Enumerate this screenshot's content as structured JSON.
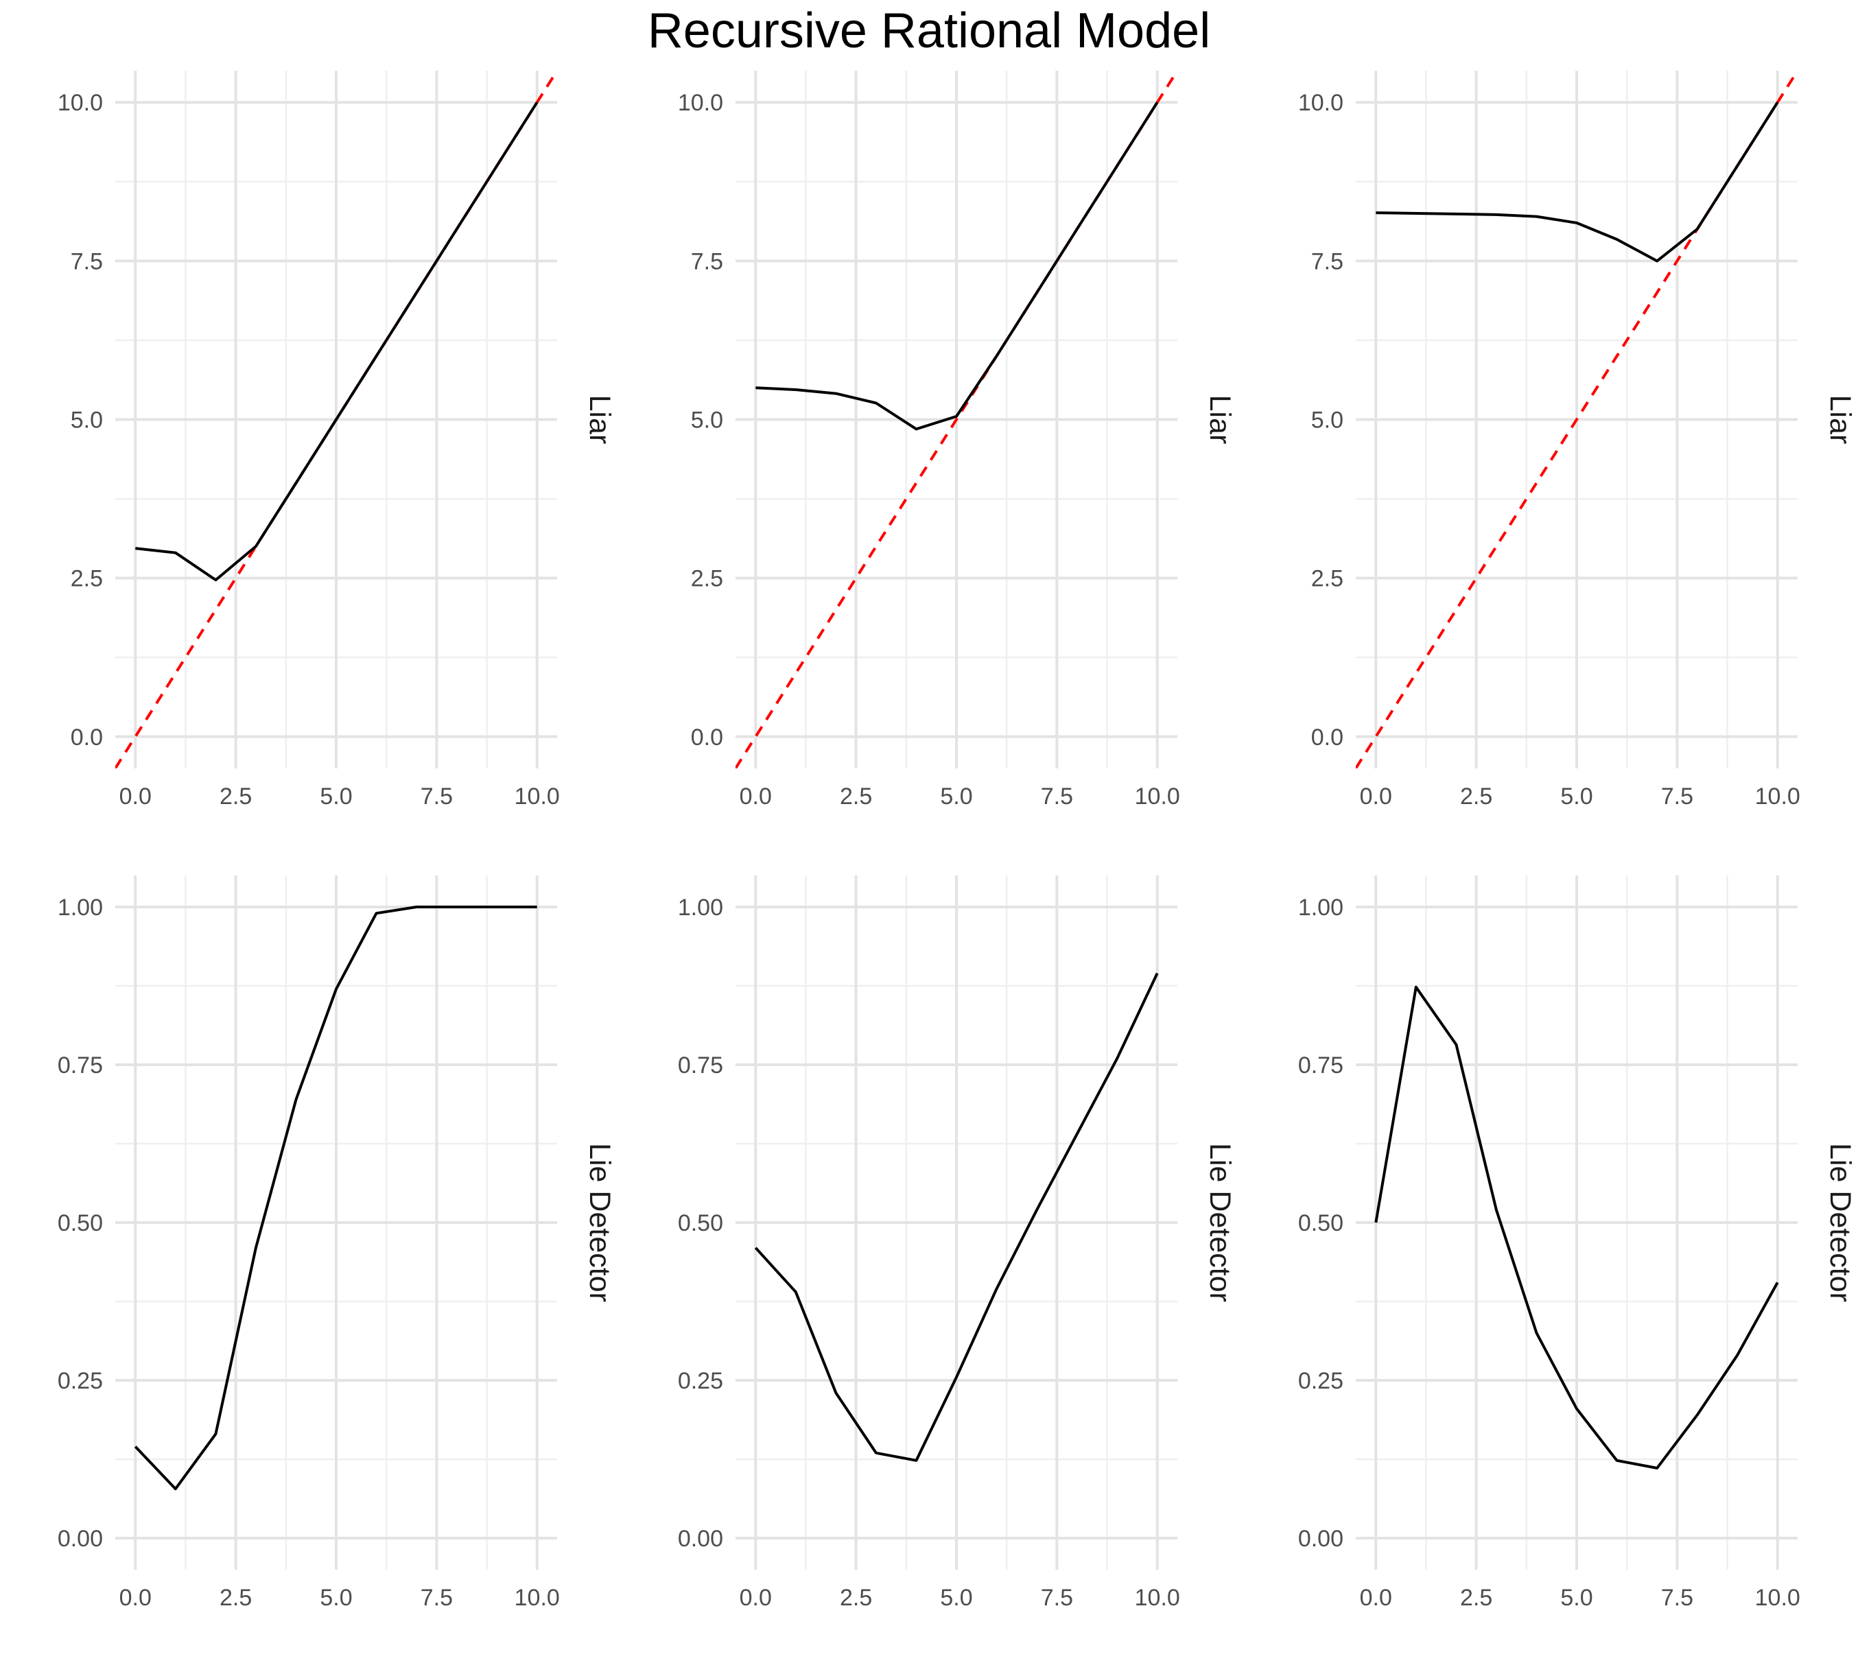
{
  "title": "Recursive Rational Model",
  "colors": {
    "grid_major": "#e3e3e3",
    "grid_minor": "#efefef",
    "line": "#000000",
    "reference": "#ff0000",
    "tick_label": "#4d4d4d"
  },
  "chart_data": [
    {
      "type": "line",
      "panel": "top-left",
      "strip": "Liar",
      "xlim": [
        -0.5,
        10.5
      ],
      "ylim": [
        -0.5,
        10.5
      ],
      "xticks": [
        "0.0",
        "2.5",
        "5.0",
        "7.5",
        "10.0"
      ],
      "yticks": [
        "0.0",
        "2.5",
        "5.0",
        "7.5",
        "10.0"
      ],
      "reference_line": {
        "style": "dashed",
        "color": "red",
        "slope": 1,
        "intercept": 0
      },
      "x": [
        0,
        1,
        2,
        3,
        4,
        5,
        6,
        7,
        8,
        9,
        10
      ],
      "series": [
        {
          "values": [
            2.97,
            2.9,
            2.47,
            3.0,
            4.0,
            5.0,
            6.0,
            7.0,
            8.0,
            9.0,
            10.0
          ]
        }
      ]
    },
    {
      "type": "line",
      "panel": "top-middle",
      "strip": "Liar",
      "xlim": [
        -0.5,
        10.5
      ],
      "ylim": [
        -0.5,
        10.5
      ],
      "xticks": [
        "0.0",
        "2.5",
        "5.0",
        "7.5",
        "10.0"
      ],
      "yticks": [
        "0.0",
        "2.5",
        "5.0",
        "7.5",
        "10.0"
      ],
      "reference_line": {
        "style": "dashed",
        "color": "red",
        "slope": 1,
        "intercept": 0
      },
      "x": [
        0,
        1,
        2,
        3,
        4,
        5,
        6,
        7,
        8,
        9,
        10
      ],
      "series": [
        {
          "values": [
            5.5,
            5.47,
            5.41,
            5.26,
            4.85,
            5.05,
            6.0,
            7.0,
            8.0,
            9.0,
            10.0
          ]
        }
      ]
    },
    {
      "type": "line",
      "panel": "top-right",
      "strip": "Liar",
      "xlim": [
        -0.5,
        10.5
      ],
      "ylim": [
        -0.5,
        10.5
      ],
      "xticks": [
        "0.0",
        "2.5",
        "5.0",
        "7.5",
        "10.0"
      ],
      "yticks": [
        "0.0",
        "2.5",
        "5.0",
        "7.5",
        "10.0"
      ],
      "reference_line": {
        "style": "dashed",
        "color": "red",
        "slope": 1,
        "intercept": 0
      },
      "x": [
        0,
        1,
        2,
        3,
        4,
        5,
        6,
        7,
        8,
        9,
        10
      ],
      "series": [
        {
          "values": [
            8.26,
            8.25,
            8.24,
            8.23,
            8.2,
            8.1,
            7.84,
            7.5,
            8.0,
            9.0,
            10.0
          ]
        }
      ]
    },
    {
      "type": "line",
      "panel": "bottom-left",
      "strip": "Lie Detector",
      "xlim": [
        -0.5,
        10.5
      ],
      "ylim": [
        -0.05,
        1.05
      ],
      "xticks": [
        "0.0",
        "2.5",
        "5.0",
        "7.5",
        "10.0"
      ],
      "yticks": [
        "0.00",
        "0.25",
        "0.50",
        "0.75",
        "1.00"
      ],
      "x": [
        0,
        1,
        2,
        3,
        4,
        5,
        6,
        7,
        8,
        9,
        10
      ],
      "series": [
        {
          "values": [
            0.145,
            0.078,
            0.165,
            0.46,
            0.695,
            0.87,
            0.99,
            1.0,
            1.0,
            1.0,
            1.0
          ]
        }
      ]
    },
    {
      "type": "line",
      "panel": "bottom-middle",
      "strip": "Lie Detector",
      "xlim": [
        -0.5,
        10.5
      ],
      "ylim": [
        -0.05,
        1.05
      ],
      "xticks": [
        "0.0",
        "2.5",
        "5.0",
        "7.5",
        "10.0"
      ],
      "yticks": [
        "0.00",
        "0.25",
        "0.50",
        "0.75",
        "1.00"
      ],
      "x": [
        0,
        1,
        2,
        3,
        4,
        5,
        6,
        7,
        8,
        9,
        10
      ],
      "series": [
        {
          "values": [
            0.46,
            0.39,
            0.23,
            0.135,
            0.123,
            0.255,
            0.395,
            0.52,
            0.64,
            0.76,
            0.895
          ]
        }
      ]
    },
    {
      "type": "line",
      "panel": "bottom-right",
      "strip": "Lie Detector",
      "xlim": [
        -0.5,
        10.5
      ],
      "ylim": [
        -0.05,
        1.05
      ],
      "xticks": [
        "0.0",
        "2.5",
        "5.0",
        "7.5",
        "10.0"
      ],
      "yticks": [
        "0.00",
        "0.25",
        "0.50",
        "0.75",
        "1.00"
      ],
      "x": [
        0,
        1,
        2,
        3,
        4,
        5,
        6,
        7,
        8,
        9,
        10
      ],
      "series": [
        {
          "values": [
            0.5,
            0.873,
            0.782,
            0.52,
            0.325,
            0.205,
            0.123,
            0.111,
            0.195,
            0.29,
            0.405
          ]
        }
      ]
    }
  ]
}
